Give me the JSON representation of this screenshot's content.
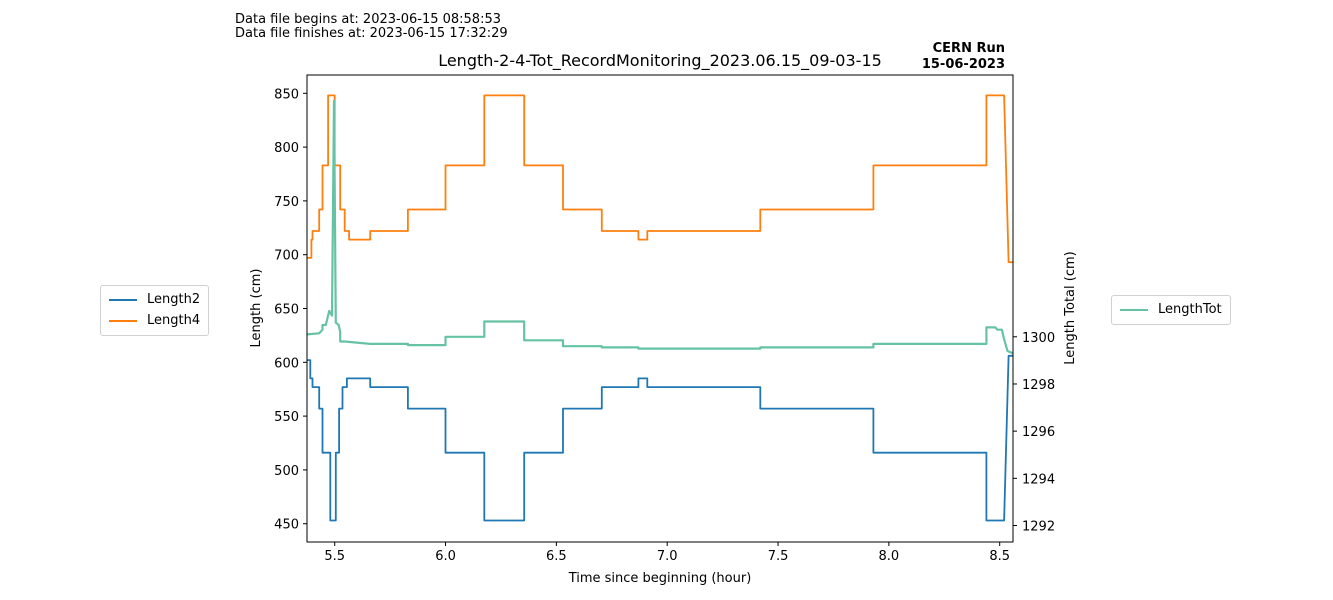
{
  "header": {
    "begin": "Data file begins at: 2023-06-15 08:58:53",
    "finish": "Data file finishes at: 2023-06-15 17:32:29",
    "title": "Length-2-4-Tot_RecordMonitoring_2023.06.15_09-03-15",
    "run_line1": "CERN Run",
    "run_line2": "15-06-2023"
  },
  "colors": {
    "length2": "#1f77b4",
    "length4": "#ff7f0e",
    "lengthtot": "#66c2a5"
  },
  "chart_data": {
    "type": "line",
    "title": "Length-2-4-Tot_RecordMonitoring_2023.06.15_09-03-15",
    "xlabel": "Time since beginning (hour)",
    "ylabel": "Length (cm)",
    "y2label": "Length Total (cm)",
    "xlim": [
      5.375,
      8.56
    ],
    "ylim": [
      433,
      867
    ],
    "y2lim": [
      1291.3,
      1311.1
    ],
    "xticks": [
      5.5,
      6.0,
      6.5,
      7.0,
      7.5,
      8.0,
      8.5
    ],
    "xtick_labels": [
      "5.5",
      "6.0",
      "6.5",
      "7.0",
      "7.5",
      "8.0",
      "8.5"
    ],
    "yticks": [
      450,
      500,
      550,
      600,
      650,
      700,
      750,
      800,
      850
    ],
    "y2ticks": [
      1292,
      1294,
      1296,
      1298,
      1300
    ],
    "legend_left": [
      "Length2",
      "Length4"
    ],
    "legend_right": [
      "LengthTot"
    ],
    "series": [
      {
        "name": "Length2",
        "axis": "left",
        "x": [
          5.375,
          5.39,
          5.39,
          5.4,
          5.4,
          5.41,
          5.41,
          5.43,
          5.43,
          5.445,
          5.445,
          5.48,
          5.48,
          5.505,
          5.505,
          5.52,
          5.52,
          5.535,
          5.535,
          5.555,
          5.555,
          5.575,
          5.575,
          5.66,
          5.66,
          5.83,
          5.83,
          6.0,
          6.0,
          6.175,
          6.175,
          6.355,
          6.355,
          6.53,
          6.53,
          6.705,
          6.705,
          6.87,
          6.87,
          6.91,
          6.91,
          7.42,
          7.42,
          7.93,
          7.93,
          8.44,
          8.44,
          8.52,
          8.54,
          8.56
        ],
        "y": [
          602,
          602,
          585,
          585,
          577,
          577,
          577,
          577,
          557,
          557,
          516,
          516,
          453,
          453,
          516,
          516,
          557,
          557,
          577,
          577,
          585,
          585,
          585,
          585,
          577,
          577,
          557,
          557,
          516,
          516,
          453,
          453,
          516,
          516,
          557,
          557,
          577,
          577,
          585,
          585,
          577,
          577,
          557,
          557,
          516,
          516,
          453,
          453,
          606,
          606
        ]
      },
      {
        "name": "Length4",
        "axis": "left",
        "x": [
          5.375,
          5.395,
          5.395,
          5.4,
          5.4,
          5.415,
          5.415,
          5.43,
          5.43,
          5.445,
          5.445,
          5.47,
          5.47,
          5.5,
          5.5,
          5.525,
          5.525,
          5.545,
          5.545,
          5.565,
          5.565,
          5.66,
          5.66,
          5.83,
          5.83,
          6.0,
          6.0,
          6.175,
          6.175,
          6.355,
          6.355,
          6.53,
          6.53,
          6.705,
          6.705,
          6.87,
          6.87,
          6.91,
          6.91,
          7.42,
          7.42,
          7.93,
          7.93,
          8.44,
          8.44,
          8.52,
          8.54,
          8.56
        ],
        "y": [
          697,
          697,
          714,
          714,
          722,
          722,
          722,
          722,
          742,
          742,
          783,
          783,
          848,
          848,
          783,
          783,
          742,
          742,
          722,
          722,
          714,
          714,
          722,
          722,
          742,
          742,
          783,
          783,
          848,
          848,
          783,
          783,
          742,
          742,
          722,
          722,
          714,
          714,
          722,
          722,
          742,
          742,
          783,
          783,
          848,
          848,
          693,
          693
        ]
      },
      {
        "name": "LengthTot",
        "axis": "right",
        "x": [
          5.375,
          5.43,
          5.445,
          5.445,
          5.46,
          5.475,
          5.488,
          5.497,
          5.505,
          5.518,
          5.525,
          5.525,
          5.545,
          5.66,
          5.66,
          5.83,
          5.83,
          6.0,
          6.0,
          6.175,
          6.175,
          6.355,
          6.355,
          6.53,
          6.53,
          6.705,
          6.705,
          6.87,
          6.87,
          6.91,
          6.91,
          7.42,
          7.42,
          7.93,
          7.93,
          8.44,
          8.44,
          8.48,
          8.49,
          8.51,
          8.52,
          8.535,
          8.56
        ],
        "y": [
          1300.1,
          1300.15,
          1300.3,
          1300.5,
          1300.5,
          1301.1,
          1300.9,
          1310.0,
          1300.6,
          1300.5,
          1300.2,
          1299.8,
          1299.8,
          1299.7,
          1299.7,
          1299.7,
          1299.65,
          1299.65,
          1300.0,
          1300.0,
          1300.65,
          1300.65,
          1299.85,
          1299.85,
          1299.6,
          1299.6,
          1299.55,
          1299.55,
          1299.5,
          1299.5,
          1299.5,
          1299.5,
          1299.55,
          1299.55,
          1299.7,
          1299.7,
          1300.4,
          1300.4,
          1300.3,
          1300.3,
          1299.9,
          1299.4,
          1299.3
        ]
      }
    ]
  }
}
